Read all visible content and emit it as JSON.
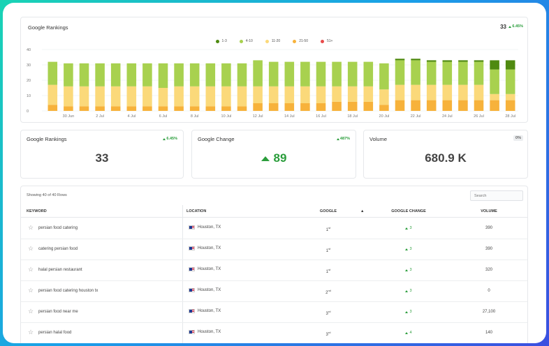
{
  "rankings_chart": {
    "title": "Google Rankings",
    "value": "33",
    "change": "6.45%",
    "legend": [
      {
        "label": "1-3",
        "color": "#4f8a10"
      },
      {
        "label": "4-10",
        "color": "#a8d14f"
      },
      {
        "label": "11-20",
        "color": "#fbd97a"
      },
      {
        "label": "21-50",
        "color": "#f7b23b"
      },
      {
        "label": "51+",
        "color": "#e84c4c"
      }
    ]
  },
  "chart_data": {
    "type": "bar",
    "stacked": true,
    "ylim": [
      0,
      40
    ],
    "yticks": [
      0,
      10,
      20,
      30,
      40
    ],
    "xticks": [
      "30 Jun",
      "2 Jul",
      "4 Jul",
      "6 Jul",
      "8 Jul",
      "10 Jul",
      "12 Jul",
      "14 Jul",
      "16 Jul",
      "18 Jul",
      "20 Jul",
      "22 Jul",
      "24 Jul",
      "26 Jul",
      "28 Jul"
    ],
    "categories": [
      "29 Jun",
      "30 Jun",
      "1 Jul",
      "2 Jul",
      "3 Jul",
      "4 Jul",
      "5 Jul",
      "6 Jul",
      "7 Jul",
      "8 Jul",
      "9 Jul",
      "10 Jul",
      "11 Jul",
      "12 Jul",
      "13 Jul",
      "14 Jul",
      "15 Jul",
      "16 Jul",
      "17 Jul",
      "18 Jul",
      "19 Jul",
      "20 Jul",
      "21 Jul",
      "22 Jul",
      "23 Jul",
      "24 Jul",
      "25 Jul",
      "26 Jul",
      "27 Jul",
      "28 Jul"
    ],
    "series": [
      {
        "name": "21-50",
        "color": "#f7b23b",
        "values": [
          4,
          3,
          3,
          3,
          3,
          3,
          3,
          3,
          3,
          3,
          3,
          3,
          3,
          5,
          5,
          5,
          5,
          5,
          6,
          6,
          6,
          4,
          7,
          7,
          7,
          7,
          7,
          7,
          7,
          7
        ]
      },
      {
        "name": "11-20",
        "color": "#fbd97a",
        "values": [
          13,
          13,
          13,
          13,
          13,
          13,
          13,
          12,
          13,
          13,
          13,
          13,
          13,
          11,
          11,
          11,
          11,
          11,
          10,
          10,
          10,
          10,
          10,
          10,
          10,
          10,
          10,
          10,
          4,
          4
        ]
      },
      {
        "name": "4-10",
        "color": "#a8d14f",
        "values": [
          15,
          15,
          15,
          15,
          15,
          15,
          15,
          16,
          15,
          15,
          15,
          15,
          15,
          17,
          16,
          16,
          16,
          16,
          16,
          16,
          16,
          17,
          16,
          16,
          15,
          15,
          15,
          15,
          16,
          16
        ]
      },
      {
        "name": "1-3",
        "color": "#4f8a10",
        "values": [
          0,
          0,
          0,
          0,
          0,
          0,
          0,
          0,
          0,
          0,
          0,
          0,
          0,
          0,
          0,
          0,
          0,
          0,
          0,
          0,
          0,
          0,
          1,
          1,
          1,
          1,
          1,
          1,
          6,
          6
        ]
      }
    ]
  },
  "stats": [
    {
      "title": "Google Rankings",
      "value": "33",
      "badge": "6.45%"
    },
    {
      "title": "Google Change",
      "value": "89",
      "badge": "487%"
    },
    {
      "title": "Volume",
      "value": "680.9 K",
      "badge": "0%"
    }
  ],
  "table": {
    "rows_info": "Showing 40 of 40 Rows",
    "search_placeholder": "Search",
    "headers": {
      "keyword": "KEYWORD",
      "location": "LOCATION",
      "google": "GOOGLE",
      "google_change": "GOOGLE CHANGE",
      "volume": "VOLUME"
    },
    "rows": [
      {
        "keyword": "persian food catering",
        "location": "Houston, TX",
        "pos": "1",
        "suffix": "st",
        "change": "3",
        "volume": "390"
      },
      {
        "keyword": "catering persian food",
        "location": "Houston, TX",
        "pos": "1",
        "suffix": "st",
        "change": "3",
        "volume": "390"
      },
      {
        "keyword": "halal persian restaurant",
        "location": "Houston, TX",
        "pos": "1",
        "suffix": "st",
        "change": "3",
        "volume": "320"
      },
      {
        "keyword": "persian food catering houston tx",
        "location": "Houston, TX",
        "pos": "2",
        "suffix": "nd",
        "change": "3",
        "volume": "0"
      },
      {
        "keyword": "persian food near me",
        "location": "Houston, TX",
        "pos": "3",
        "suffix": "rd",
        "change": "3",
        "volume": "27,100"
      },
      {
        "keyword": "persian halal food",
        "location": "Houston, TX",
        "pos": "3",
        "suffix": "rd",
        "change": "4",
        "volume": "140"
      }
    ]
  }
}
